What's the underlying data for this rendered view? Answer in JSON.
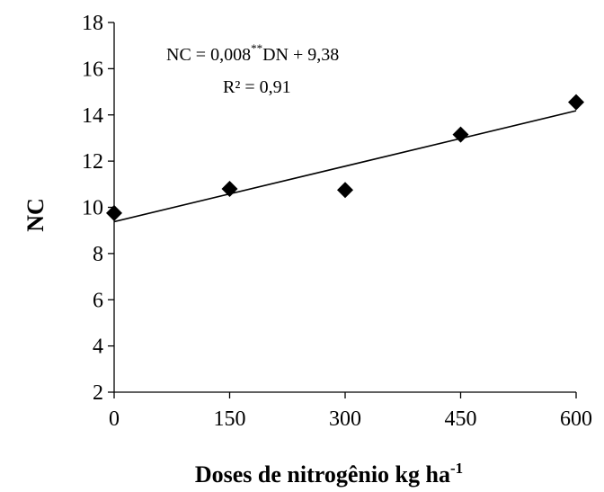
{
  "chart_data": {
    "type": "scatter",
    "x": [
      0,
      150,
      300,
      450,
      600
    ],
    "y": [
      9.75,
      10.8,
      10.75,
      13.15,
      14.55
    ],
    "xticks": [
      "0",
      "150",
      "300",
      "450",
      "600"
    ],
    "yticks": [
      "2",
      "4",
      "6",
      "8",
      "10",
      "12",
      "14",
      "16",
      "18"
    ],
    "xlim": [
      0,
      600
    ],
    "ylim": [
      2,
      18
    ],
    "xlabel": "Doses de nitrogênio kg ha",
    "xlabel_superscript": "-1",
    "ylabel": "NC",
    "trendline": {
      "type": "linear",
      "slope": 0.008,
      "intercept": 9.38
    },
    "equation": {
      "prefix": "NC = 0,008",
      "superscript": "**",
      "suffix": "DN  + 9,38",
      "r2": "R² = 0,91"
    },
    "marker": "diamond",
    "grid": false,
    "colors": {
      "marker": "#000000",
      "line": "#000000",
      "axis": "#000000"
    }
  }
}
